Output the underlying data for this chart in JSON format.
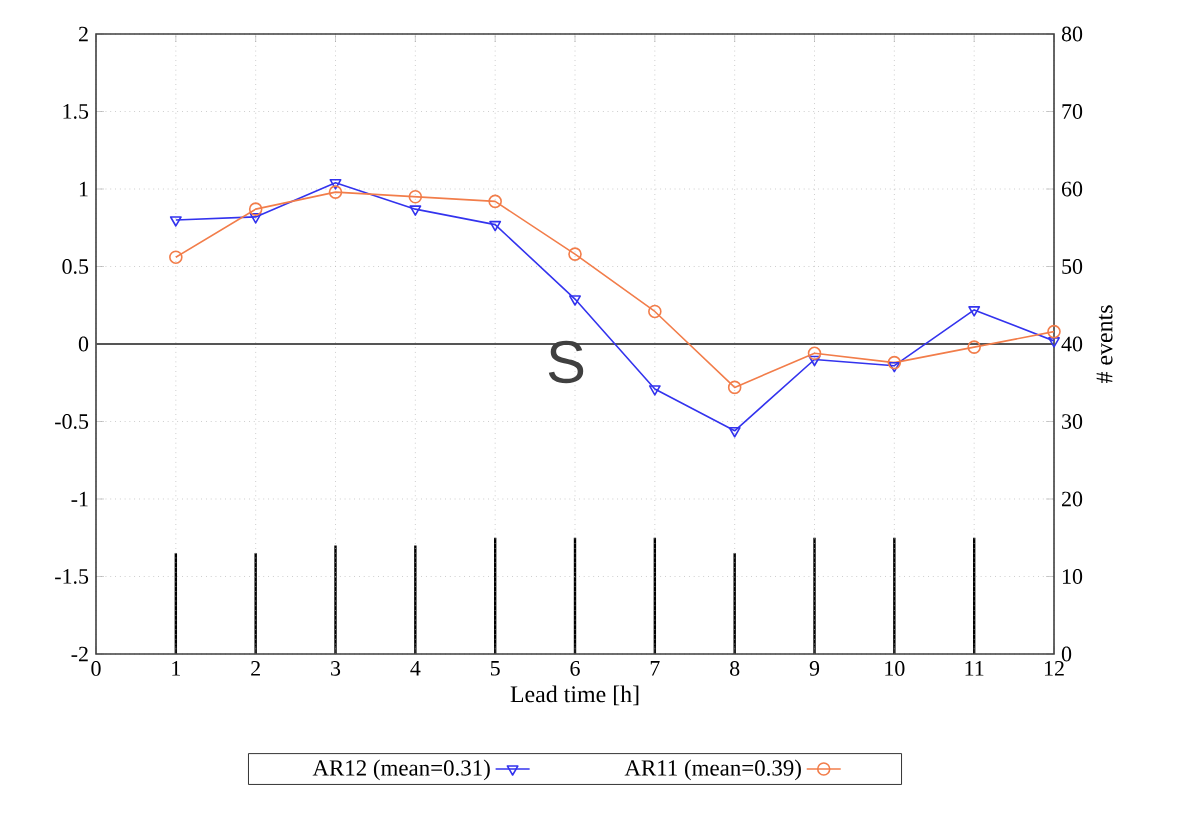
{
  "chart_data": {
    "type": "line",
    "x": [
      1,
      2,
      3,
      4,
      5,
      6,
      7,
      8,
      9,
      10,
      11,
      12
    ],
    "xlabel": "Lead time [h]",
    "y2label": "# events",
    "xlim": [
      0,
      12
    ],
    "xticks": [
      0,
      1,
      2,
      3,
      4,
      5,
      6,
      7,
      8,
      9,
      10,
      11,
      12
    ],
    "ylim": [
      -2,
      2
    ],
    "yticks": [
      -2,
      -1.5,
      -1,
      -0.5,
      0,
      0.5,
      1,
      1.5,
      2
    ],
    "y2lim": [
      0,
      80
    ],
    "y2ticks": [
      0,
      10,
      20,
      30,
      40,
      50,
      60,
      70,
      80
    ],
    "grid": true,
    "legend": "bottom",
    "line_style": "solid",
    "ref_lines": [
      {
        "axis": "y",
        "value": 0,
        "color": "#555555"
      }
    ],
    "annotations": [
      "S"
    ],
    "series": [
      {
        "name": "AR12 (mean=0.31)",
        "color": "#3333ee",
        "marker": "triangle",
        "values": [
          0.8,
          0.82,
          1.04,
          0.87,
          0.77,
          0.29,
          -0.29,
          -0.56,
          -0.1,
          -0.14,
          0.22,
          0.02
        ]
      },
      {
        "name": "AR11 (mean=0.39)",
        "color": "#f27d4a",
        "marker": "circle",
        "values": [
          0.56,
          0.87,
          0.98,
          0.95,
          0.92,
          0.58,
          0.21,
          -0.28,
          -0.06,
          -0.12,
          -0.02,
          0.08
        ]
      },
      {
        "type": "bar",
        "axis": "y2",
        "color": "#000000",
        "x": [
          1,
          2,
          3,
          4,
          5,
          6,
          7,
          8,
          9,
          10,
          11
        ],
        "values": [
          13,
          13,
          14,
          14,
          15,
          15,
          15,
          13,
          15,
          15,
          15
        ]
      }
    ]
  }
}
